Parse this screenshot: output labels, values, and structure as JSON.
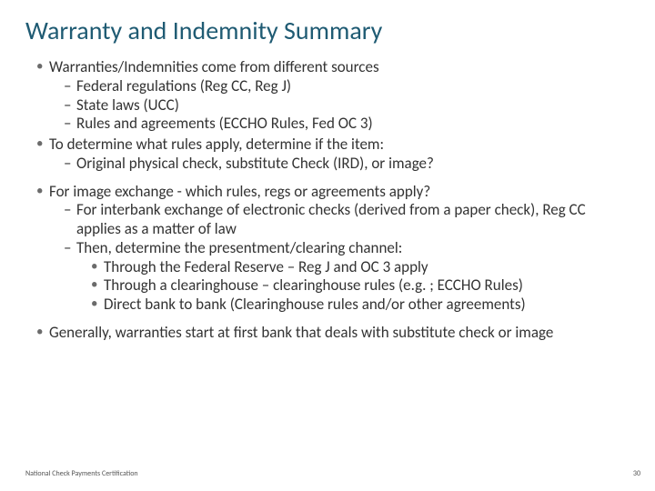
{
  "colors": {
    "title": "#1f5b73",
    "body": "#333333",
    "bullet": "#6b6b6b",
    "background": "#ffffff"
  },
  "typography": {
    "title_fontsize": 28,
    "body_fontsize": 17,
    "footer_fontsize": 8,
    "font_family": "Calibri"
  },
  "title": "Warranty and Indemnity Summary",
  "bullets": {
    "b1": "Warranties/Indemnities come from different sources",
    "b1a": "Federal regulations (Reg CC, Reg J)",
    "b1b": "State laws (UCC)",
    "b1c": "Rules and agreements (ECCHO Rules, Fed OC 3)",
    "b2": "To determine what rules apply, determine if the item:",
    "b2a": "Original physical check, substitute Check (IRD), or image?",
    "b3": "For image exchange - which rules, regs or agreements apply?",
    "b3a": "For interbank exchange of electronic checks (derived from a paper check), Reg CC applies as a matter of law",
    "b3b": "Then, determine the presentment/clearing channel:",
    "b3b1": "Through the Federal Reserve – Reg J and OC 3  apply",
    "b3b2": "Through a clearinghouse – clearinghouse rules (e.g. ; ECCHO Rules)",
    "b3b3": "Direct bank to bank (Clearinghouse rules and/or other agreements)",
    "b4": "Generally, warranties start at first bank that deals with substitute check or image"
  },
  "footer": {
    "left": "National Check Payments Certification",
    "page": "30"
  }
}
